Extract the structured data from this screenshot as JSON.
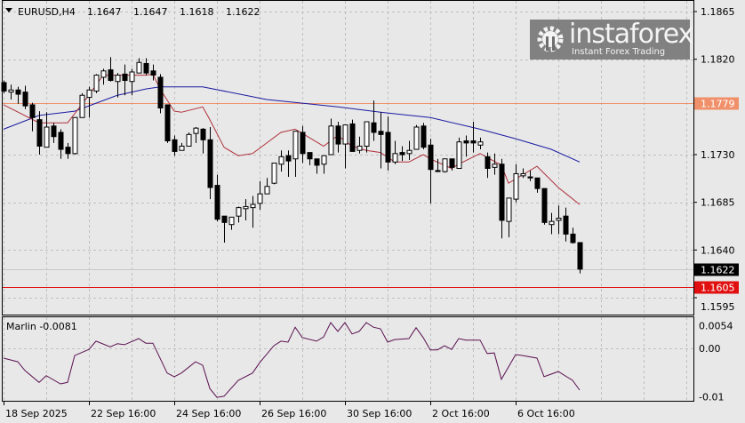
{
  "header": {
    "symbol": "EURUSD,H4",
    "open": "1.1647",
    "high": "1.1647",
    "low": "1.1618",
    "close": "1.1622"
  },
  "colors": {
    "background": "#e8e8e8",
    "grid": "#c0c0c0",
    "bull_body": "#ffffff",
    "bear_body": "#000000",
    "fast_ma": "#b0303a",
    "slow_ma": "#1a1aa0",
    "resistance": "#f0906a",
    "support": "#e01010",
    "marlin": "#5a1050"
  },
  "chart_data": {
    "type": "candlestick",
    "title": "EURUSD,H4",
    "y_ticks": [
      "1.1865",
      "1.1820",
      "1.1730",
      "1.1685",
      "1.1640",
      "1.1595"
    ],
    "ylim": [
      1.159,
      1.1875
    ],
    "grid": true,
    "x_labels": [
      {
        "bar": 0,
        "text": "18 Sep 2025"
      },
      {
        "bar": 12,
        "text": "22 Sep 16:00"
      },
      {
        "bar": 24,
        "text": "24 Sep 16:00"
      },
      {
        "bar": 36,
        "text": "26 Sep 16:00"
      },
      {
        "bar": 48,
        "text": "30 Sep 16:00"
      },
      {
        "bar": 60,
        "text": "2 Oct 16:00"
      },
      {
        "bar": 72,
        "text": "6 Oct 16:00"
      }
    ],
    "candles_ohlc": [
      [
        1.1798,
        1.18,
        1.1788,
        1.179
      ],
      [
        1.1789,
        1.1796,
        1.1782,
        1.1791
      ],
      [
        1.1791,
        1.1794,
        1.1778,
        1.1787
      ],
      [
        1.1789,
        1.1795,
        1.1773,
        1.1776
      ],
      [
        1.1777,
        1.1779,
        1.1752,
        1.1765
      ],
      [
        1.1763,
        1.1771,
        1.173,
        1.1738
      ],
      [
        1.1737,
        1.177,
        1.1737,
        1.1756
      ],
      [
        1.1757,
        1.176,
        1.1741,
        1.1747
      ],
      [
        1.1751,
        1.1754,
        1.1726,
        1.1735
      ],
      [
        1.1737,
        1.1741,
        1.1726,
        1.1731
      ],
      [
        1.1731,
        1.1765,
        1.173,
        1.1765
      ],
      [
        1.1765,
        1.1788,
        1.1765,
        1.1786
      ],
      [
        1.1784,
        1.1794,
        1.1765,
        1.1791
      ],
      [
        1.179,
        1.1806,
        1.1788,
        1.1805
      ],
      [
        1.1803,
        1.1811,
        1.1796,
        1.1809
      ],
      [
        1.181,
        1.1822,
        1.1799,
        1.18
      ],
      [
        1.1799,
        1.1807,
        1.1784,
        1.1805
      ],
      [
        1.1806,
        1.1815,
        1.1786,
        1.18
      ],
      [
        1.1799,
        1.1811,
        1.1786,
        1.1808
      ],
      [
        1.1807,
        1.1821,
        1.1807,
        1.1817
      ],
      [
        1.1816,
        1.1821,
        1.1805,
        1.1807
      ],
      [
        1.1809,
        1.1815,
        1.18,
        1.1805
      ],
      [
        1.1803,
        1.1806,
        1.1769,
        1.1774
      ],
      [
        1.1777,
        1.1777,
        1.1741,
        1.1743
      ],
      [
        1.1744,
        1.1748,
        1.1729,
        1.1733
      ],
      [
        1.1734,
        1.1741,
        1.1734,
        1.1738
      ],
      [
        1.1738,
        1.1751,
        1.1738,
        1.1749
      ],
      [
        1.175,
        1.1756,
        1.1741,
        1.1755
      ],
      [
        1.1754,
        1.1755,
        1.1731,
        1.1744
      ],
      [
        1.1744,
        1.1756,
        1.1688,
        1.1699
      ],
      [
        1.1701,
        1.1711,
        1.1667,
        1.1669
      ],
      [
        1.1672,
        1.1672,
        1.1647,
        1.1666
      ],
      [
        1.1664,
        1.1671,
        1.1659,
        1.1671
      ],
      [
        1.1672,
        1.1681,
        1.1666,
        1.168
      ],
      [
        1.1679,
        1.1688,
        1.1668,
        1.1681
      ],
      [
        1.168,
        1.1691,
        1.1661,
        1.1683
      ],
      [
        1.1684,
        1.1705,
        1.1678,
        1.1693
      ],
      [
        1.1693,
        1.1708,
        1.1693,
        1.17
      ],
      [
        1.1703,
        1.1722,
        1.1702,
        1.1722
      ],
      [
        1.1721,
        1.1734,
        1.1714,
        1.1728
      ],
      [
        1.1729,
        1.1734,
        1.1709,
        1.1724
      ],
      [
        1.1726,
        1.1752,
        1.1709,
        1.1752
      ],
      [
        1.1751,
        1.1757,
        1.1722,
        1.1731
      ],
      [
        1.1732,
        1.1732,
        1.172,
        1.1726
      ],
      [
        1.1726,
        1.1726,
        1.1712,
        1.172
      ],
      [
        1.1721,
        1.1729,
        1.1712,
        1.1729
      ],
      [
        1.173,
        1.1764,
        1.173,
        1.1757
      ],
      [
        1.1757,
        1.1761,
        1.1732,
        1.174
      ],
      [
        1.174,
        1.1758,
        1.1717,
        1.1758
      ],
      [
        1.1759,
        1.1763,
        1.1733,
        1.1733
      ],
      [
        1.1734,
        1.1747,
        1.1731,
        1.1738
      ],
      [
        1.1738,
        1.1761,
        1.1732,
        1.1761
      ],
      [
        1.176,
        1.1781,
        1.1743,
        1.1751
      ],
      [
        1.1752,
        1.177,
        1.1717,
        1.1749
      ],
      [
        1.1751,
        1.1766,
        1.1715,
        1.1723
      ],
      [
        1.1723,
        1.1743,
        1.1721,
        1.1731
      ],
      [
        1.1732,
        1.1738,
        1.1724,
        1.173
      ],
      [
        1.1731,
        1.1743,
        1.1725,
        1.1734
      ],
      [
        1.1735,
        1.1758,
        1.1735,
        1.1756
      ],
      [
        1.1757,
        1.176,
        1.1735,
        1.1737
      ],
      [
        1.1739,
        1.1745,
        1.1684,
        1.1716
      ],
      [
        1.1715,
        1.1726,
        1.1714,
        1.1714
      ],
      [
        1.1714,
        1.1726,
        1.1713,
        1.1726
      ],
      [
        1.1726,
        1.1726,
        1.1715,
        1.1718
      ],
      [
        1.1717,
        1.1746,
        1.1717,
        1.1742
      ],
      [
        1.1743,
        1.1748,
        1.1728,
        1.1741
      ],
      [
        1.1743,
        1.1761,
        1.1732,
        1.1741
      ],
      [
        1.1739,
        1.1746,
        1.1735,
        1.1742
      ],
      [
        1.1728,
        1.1732,
        1.1708,
        1.1717
      ],
      [
        1.1718,
        1.1731,
        1.1711,
        1.1721
      ],
      [
        1.1721,
        1.1726,
        1.1651,
        1.1668
      ],
      [
        1.1667,
        1.1689,
        1.1652,
        1.1689
      ],
      [
        1.1688,
        1.1721,
        1.1685,
        1.1712
      ],
      [
        1.171,
        1.1717,
        1.1708,
        1.1712
      ],
      [
        1.1709,
        1.1715,
        1.1705,
        1.1708
      ],
      [
        1.1708,
        1.1708,
        1.1694,
        1.1698
      ],
      [
        1.1698,
        1.1698,
        1.1664,
        1.1666
      ],
      [
        1.1664,
        1.1675,
        1.1655,
        1.1667
      ],
      [
        1.1668,
        1.1682,
        1.1655,
        1.167
      ],
      [
        1.1672,
        1.168,
        1.1648,
        1.1655
      ],
      [
        1.1655,
        1.1661,
        1.1646,
        1.1647
      ],
      [
        1.1647,
        1.1647,
        1.1618,
        1.1622
      ]
    ],
    "fast_ma": [
      [
        0,
        1.1777
      ],
      [
        5,
        1.176
      ],
      [
        9,
        1.176
      ],
      [
        12,
        1.1786
      ],
      [
        14,
        1.1805
      ],
      [
        20,
        1.1805
      ],
      [
        21,
        1.1806
      ],
      [
        22,
        1.1792
      ],
      [
        24,
        1.1771
      ],
      [
        25,
        1.177
      ],
      [
        28,
        1.1775
      ],
      [
        29,
        1.1763
      ],
      [
        31,
        1.1737
      ],
      [
        33,
        1.1729
      ],
      [
        35,
        1.1731
      ],
      [
        37,
        1.1741
      ],
      [
        39,
        1.1751
      ],
      [
        41,
        1.1754
      ],
      [
        42,
        1.175
      ],
      [
        45,
        1.1738
      ],
      [
        47,
        1.1748
      ],
      [
        49,
        1.1738
      ],
      [
        51,
        1.1734
      ],
      [
        53,
        1.1732
      ],
      [
        55,
        1.1723
      ],
      [
        57,
        1.1723
      ],
      [
        59,
        1.173
      ],
      [
        60,
        1.1726
      ],
      [
        63,
        1.1717
      ],
      [
        64,
        1.1721
      ],
      [
        67,
        1.1731
      ],
      [
        70,
        1.172
      ],
      [
        71,
        1.1703
      ],
      [
        75,
        1.1719
      ],
      [
        78,
        1.1699
      ],
      [
        81,
        1.1683
      ]
    ],
    "slow_ma": [
      [
        0,
        1.1754
      ],
      [
        5,
        1.1767
      ],
      [
        10,
        1.1771
      ],
      [
        16,
        1.1786
      ],
      [
        20,
        1.1792
      ],
      [
        22,
        1.1794
      ],
      [
        28,
        1.1794
      ],
      [
        37,
        1.1782
      ],
      [
        47,
        1.1775
      ],
      [
        53,
        1.177
      ],
      [
        60,
        1.1765
      ],
      [
        67,
        1.1754
      ],
      [
        72,
        1.1745
      ],
      [
        77,
        1.1735
      ],
      [
        81,
        1.1723
      ]
    ],
    "levels": [
      {
        "price": 1.1779,
        "label": "1.1779",
        "role": "resistance"
      },
      {
        "price": 1.1605,
        "label": "1.1605",
        "role": "support"
      }
    ],
    "current_price": {
      "price": 1.1622,
      "label": "1.1622"
    },
    "indicator": {
      "name": "Marlin",
      "label": "Marlin -0.0081",
      "y_ticks": [
        "0.0054",
        "0.00",
        "-0.01"
      ],
      "points": [
        [
          0,
          -0.0019
        ],
        [
          2,
          -0.0026
        ],
        [
          3,
          -0.0043
        ],
        [
          5,
          -0.0066
        ],
        [
          6,
          -0.0053
        ],
        [
          8,
          -0.0069
        ],
        [
          9,
          -0.0066
        ],
        [
          10,
          -0.0014
        ],
        [
          12,
          -0.0002
        ],
        [
          13,
          0.0014
        ],
        [
          15,
          0.0003
        ],
        [
          16,
          0.0009
        ],
        [
          17,
          0.0007
        ],
        [
          19,
          0.0019
        ],
        [
          20,
          0.001
        ],
        [
          21,
          0.001
        ],
        [
          23,
          -0.0048
        ],
        [
          24,
          -0.0055
        ],
        [
          25,
          -0.0048
        ],
        [
          27,
          -0.0026
        ],
        [
          28,
          -0.0033
        ],
        [
          29,
          -0.0078
        ],
        [
          30,
          -0.0095
        ],
        [
          31,
          -0.0093
        ],
        [
          33,
          -0.0062
        ],
        [
          35,
          -0.0048
        ],
        [
          36,
          -0.0028
        ],
        [
          38,
          0.0005
        ],
        [
          39,
          0.0014
        ],
        [
          40,
          0.0012
        ],
        [
          41,
          0.0041
        ],
        [
          42,
          0.0021
        ],
        [
          44,
          0.0014
        ],
        [
          45,
          0.0022
        ],
        [
          46,
          0.005
        ],
        [
          47,
          0.0033
        ],
        [
          48,
          0.005
        ],
        [
          49,
          0.0028
        ],
        [
          50,
          0.0033
        ],
        [
          51,
          0.005
        ],
        [
          52,
          0.0041
        ],
        [
          53,
          0.0038
        ],
        [
          54,
          0.0012
        ],
        [
          55,
          0.0017
        ],
        [
          57,
          0.0019
        ],
        [
          58,
          0.004
        ],
        [
          59,
          0.0021
        ],
        [
          60,
          -0.0003
        ],
        [
          61,
          -0.0003
        ],
        [
          62,
          0.0005
        ],
        [
          63,
          -0.0002
        ],
        [
          64,
          0.0019
        ],
        [
          65,
          0.0016
        ],
        [
          67,
          0.0016
        ],
        [
          68,
          -0.001
        ],
        [
          69,
          -0.0009
        ],
        [
          70,
          -0.006
        ],
        [
          72,
          -0.0012
        ],
        [
          73,
          -0.0014
        ],
        [
          75,
          -0.0019
        ],
        [
          76,
          -0.0055
        ],
        [
          78,
          -0.0045
        ],
        [
          80,
          -0.0062
        ],
        [
          81,
          -0.0081
        ]
      ]
    }
  },
  "logo": {
    "brand": "instaforex",
    "tagline": "Instant Forex Trading"
  }
}
